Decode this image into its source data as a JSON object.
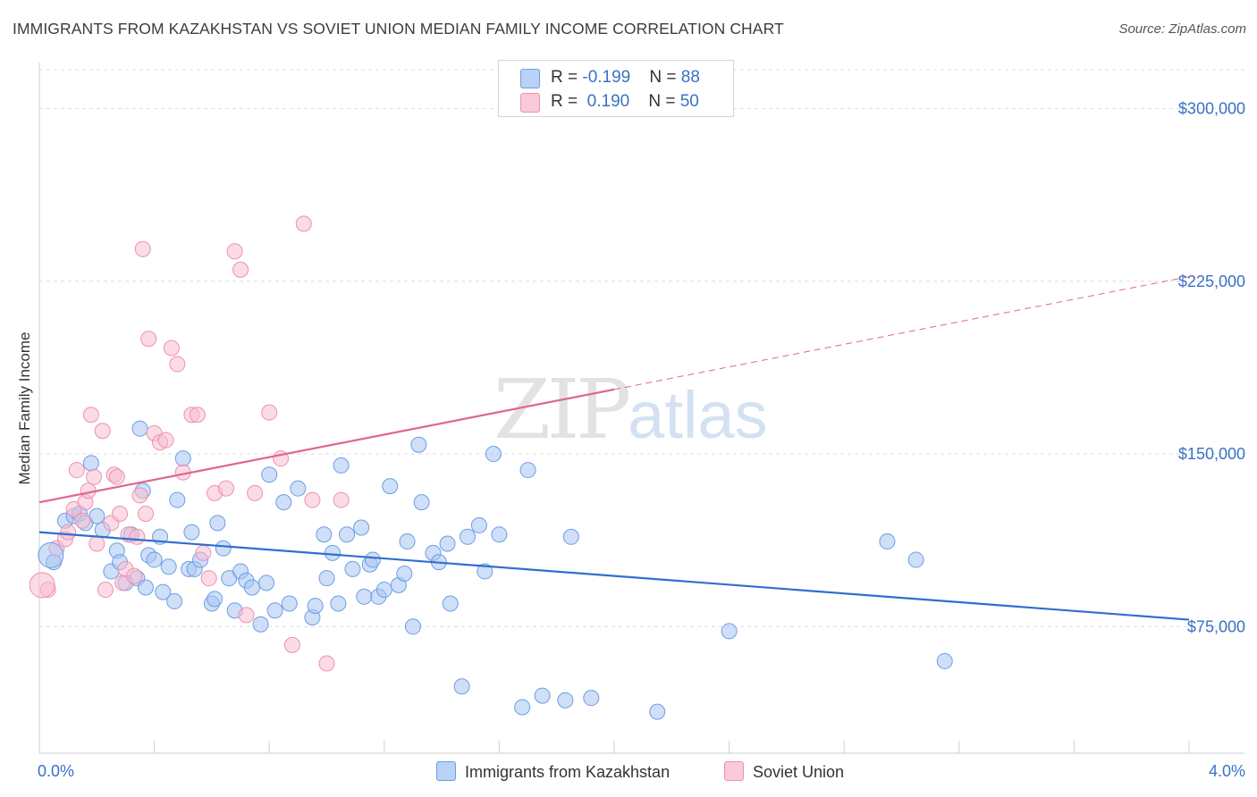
{
  "title": "IMMIGRANTS FROM KAZAKHSTAN VS SOVIET UNION MEDIAN FAMILY INCOME CORRELATION CHART",
  "source": "Source: ZipAtlas.com",
  "watermark": {
    "zip": "ZIP",
    "atlas": "atlas"
  },
  "legend": {
    "series1": {
      "r_label": "R = ",
      "r_value": "-0.199",
      "n_label": "N = ",
      "n_value": "88"
    },
    "series2": {
      "r_label": "R = ",
      "r_value": "0.190",
      "n_label": "N = ",
      "n_value": "50"
    }
  },
  "chart_data": {
    "type": "scatter",
    "title": "IMMIGRANTS FROM KAZAKHSTAN VS SOVIET UNION MEDIAN FAMILY INCOME CORRELATION CHART",
    "xlabel": "",
    "ylabel": "Median Family Income",
    "xlim": [
      0,
      4.0
    ],
    "ylim": [
      20000,
      320000
    ],
    "x_tick_labels": [
      "0.0%",
      "4.0%"
    ],
    "y_ticks": [
      75000,
      150000,
      225000,
      300000
    ],
    "y_tick_labels": [
      "$75,000",
      "$150,000",
      "$225,000",
      "$300,000"
    ],
    "grid": "horizontal-dashed",
    "legend_position": "top-center",
    "colors": {
      "series1": "#6b9ee6",
      "series2": "#f08fb0",
      "trend1": "#2f6fce",
      "trend2": "#e06690"
    },
    "series": [
      {
        "name": "Immigrants from Kazakhstan",
        "trend": {
          "x": [
            0.0,
            4.0
          ],
          "y": [
            116000,
            78000
          ],
          "solid_until": 4.0
        },
        "x": [
          0.05,
          0.09,
          0.12,
          0.14,
          0.16,
          0.18,
          0.2,
          0.22,
          0.25,
          0.27,
          0.28,
          0.3,
          0.32,
          0.34,
          0.35,
          0.36,
          0.37,
          0.38,
          0.4,
          0.42,
          0.43,
          0.45,
          0.47,
          0.48,
          0.5,
          0.52,
          0.53,
          0.54,
          0.56,
          0.6,
          0.61,
          0.62,
          0.64,
          0.66,
          0.68,
          0.7,
          0.72,
          0.74,
          0.77,
          0.79,
          0.8,
          0.82,
          0.85,
          0.87,
          0.9,
          0.95,
          0.96,
          0.99,
          1.0,
          1.02,
          1.04,
          1.05,
          1.07,
          1.09,
          1.12,
          1.13,
          1.15,
          1.16,
          1.18,
          1.2,
          1.22,
          1.25,
          1.27,
          1.28,
          1.3,
          1.32,
          1.33,
          1.37,
          1.39,
          1.42,
          1.43,
          1.47,
          1.49,
          1.53,
          1.55,
          1.58,
          1.6,
          1.68,
          1.7,
          1.75,
          1.83,
          1.85,
          1.92,
          2.15,
          2.4,
          2.95,
          3.05,
          3.15
        ],
        "y": [
          103000,
          121000,
          123000,
          124000,
          120000,
          146000,
          123000,
          117000,
          99000,
          108000,
          103000,
          94000,
          115000,
          96000,
          161000,
          134000,
          92000,
          106000,
          104000,
          114000,
          90000,
          101000,
          86000,
          130000,
          148000,
          100000,
          116000,
          100000,
          104000,
          85000,
          87000,
          120000,
          109000,
          96000,
          82000,
          99000,
          95000,
          92000,
          76000,
          94000,
          141000,
          82000,
          129000,
          85000,
          135000,
          79000,
          84000,
          115000,
          96000,
          107000,
          85000,
          145000,
          115000,
          100000,
          118000,
          88000,
          102000,
          104000,
          88000,
          91000,
          136000,
          93000,
          98000,
          112000,
          75000,
          154000,
          129000,
          107000,
          103000,
          111000,
          85000,
          49000,
          114000,
          119000,
          99000,
          150000,
          115000,
          40000,
          143000,
          45000,
          43000,
          114000,
          44000,
          38000,
          73000,
          112000,
          104000,
          60000
        ]
      },
      {
        "name": "Soviet Union",
        "trend": {
          "x": [
            0.0,
            4.0
          ],
          "y": [
            129000,
            227000
          ],
          "solid_until": 2.0
        },
        "x": [
          0.03,
          0.06,
          0.09,
          0.1,
          0.12,
          0.13,
          0.15,
          0.16,
          0.17,
          0.18,
          0.19,
          0.2,
          0.22,
          0.23,
          0.25,
          0.26,
          0.27,
          0.28,
          0.29,
          0.3,
          0.31,
          0.33,
          0.34,
          0.35,
          0.36,
          0.37,
          0.38,
          0.4,
          0.42,
          0.44,
          0.46,
          0.48,
          0.5,
          0.53,
          0.55,
          0.57,
          0.59,
          0.61,
          0.65,
          0.68,
          0.7,
          0.72,
          0.75,
          0.8,
          0.84,
          0.88,
          0.92,
          0.95,
          1.0,
          1.05
        ],
        "y": [
          91000,
          109000,
          113000,
          116000,
          126000,
          143000,
          121000,
          129000,
          134000,
          167000,
          140000,
          111000,
          160000,
          91000,
          120000,
          141000,
          140000,
          124000,
          94000,
          100000,
          115000,
          97000,
          114000,
          132000,
          239000,
          124000,
          200000,
          159000,
          155000,
          156000,
          196000,
          189000,
          142000,
          167000,
          167000,
          107000,
          96000,
          133000,
          135000,
          238000,
          230000,
          80000,
          133000,
          168000,
          148000,
          67000,
          250000,
          130000,
          59000,
          130000
        ]
      }
    ]
  },
  "bottom_legend": {
    "series1": "Immigrants from Kazakhstan",
    "series2": "Soviet Union"
  }
}
